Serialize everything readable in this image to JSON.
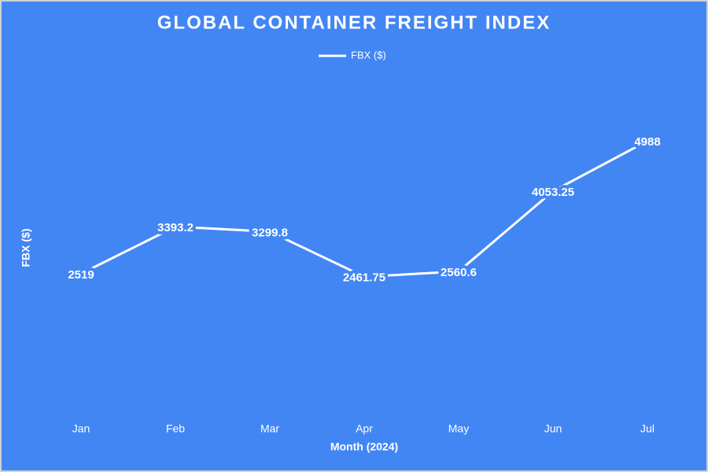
{
  "chart_data": {
    "type": "line",
    "title": "GLOBAL CONTAINER FREIGHT INDEX",
    "x_label": "Month (2024)",
    "y_label": "FBX ($)",
    "categories": [
      "Jan",
      "Feb",
      "Mar",
      "Apr",
      "May",
      "Jun",
      "Jul"
    ],
    "series": [
      {
        "name": "FBX ($)",
        "color": "#ffffff",
        "values": [
          2519,
          3393.2,
          3299.8,
          2461.75,
          2560.6,
          4053.25,
          4988
        ]
      }
    ],
    "ylim": [
      0,
      6000
    ],
    "legend": "top",
    "background": "#4286f4"
  }
}
